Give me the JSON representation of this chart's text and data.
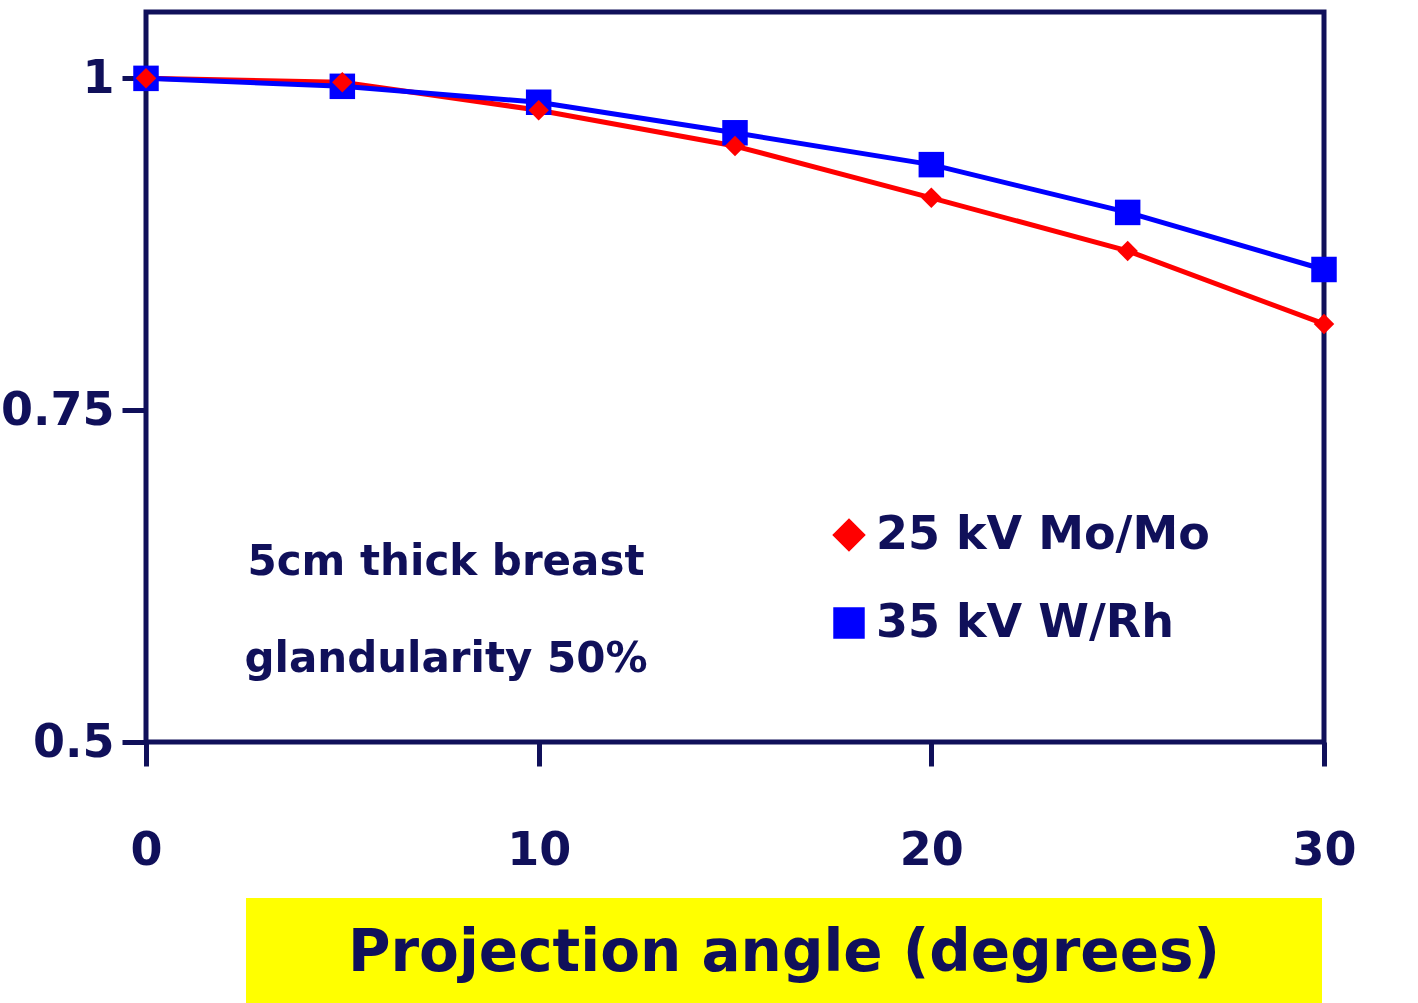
{
  "chart_data": {
    "type": "line",
    "xlabel": "Projection angle (degrees)",
    "x": [
      0,
      5,
      10,
      15,
      20,
      25,
      30
    ],
    "series": [
      {
        "name": "25 kV Mo/Mo",
        "color": "#ff0000",
        "marker": "diamond",
        "values": [
          1,
          0.997,
          0.976,
          0.949,
          0.91,
          0.87,
          0.815
        ]
      },
      {
        "name": "35 kV W/Rh",
        "color": "#0000ff",
        "marker": "square",
        "values": [
          1,
          0.994,
          0.982,
          0.959,
          0.935,
          0.899,
          0.856
        ]
      }
    ],
    "xlim": [
      0,
      30
    ],
    "xticks": [
      0,
      10,
      20,
      30
    ],
    "ylim": [
      0.5,
      1.05
    ],
    "yticks": [
      0.5,
      0.75,
      1
    ],
    "annotations": [
      "5cm thick breast",
      "glandularity 50%"
    ],
    "grid": false,
    "legend": "bottom right"
  }
}
